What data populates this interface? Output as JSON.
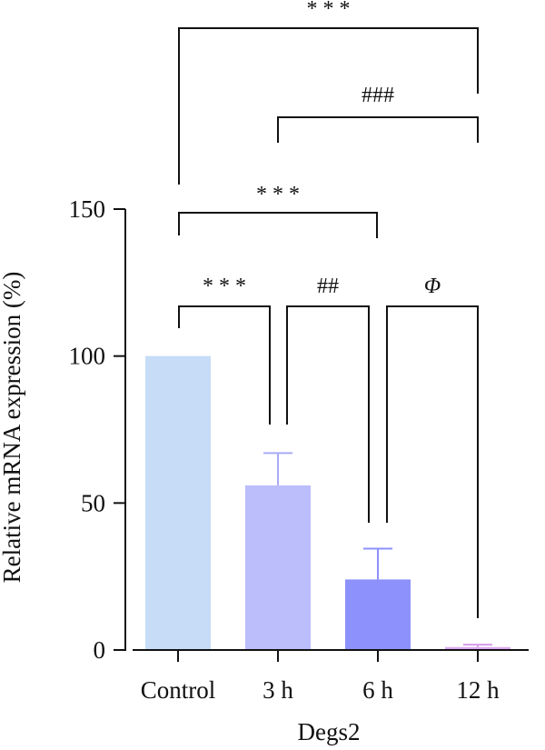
{
  "chart_data": {
    "type": "bar",
    "title": "",
    "xlabel": "Degs2",
    "ylabel": "Relative mRNA expression (%)",
    "ylim": [
      0,
      150
    ],
    "yticks": [
      0,
      50,
      100,
      150
    ],
    "grid": false,
    "legend": "none",
    "categories": [
      "Control",
      "3 h",
      "6 h",
      "12 h"
    ],
    "values": [
      100,
      56,
      24,
      1
    ],
    "errors": [
      0,
      11,
      10.5,
      0.8
    ],
    "colors": [
      "#c6dcf7",
      "#bcbdfb",
      "#8d91fb",
      "#dca8f0"
    ],
    "error_colors": [
      "#c6dcf7",
      "#a9abf5",
      "#8d91fb",
      "#d59de9"
    ],
    "significance": [
      {
        "from": 0,
        "to": 1,
        "label": "* * *",
        "italic": false
      },
      {
        "from": 1,
        "to": 2,
        "label": "##",
        "italic": false
      },
      {
        "from": 2,
        "to": 3,
        "label": "Φ",
        "italic": true
      },
      {
        "from": 0,
        "to": 2,
        "label": "* * *",
        "italic": false
      },
      {
        "from": 1,
        "to": 3,
        "label": "###",
        "italic": false
      },
      {
        "from": 0,
        "to": 3,
        "label": "* * *",
        "italic": false
      }
    ]
  }
}
